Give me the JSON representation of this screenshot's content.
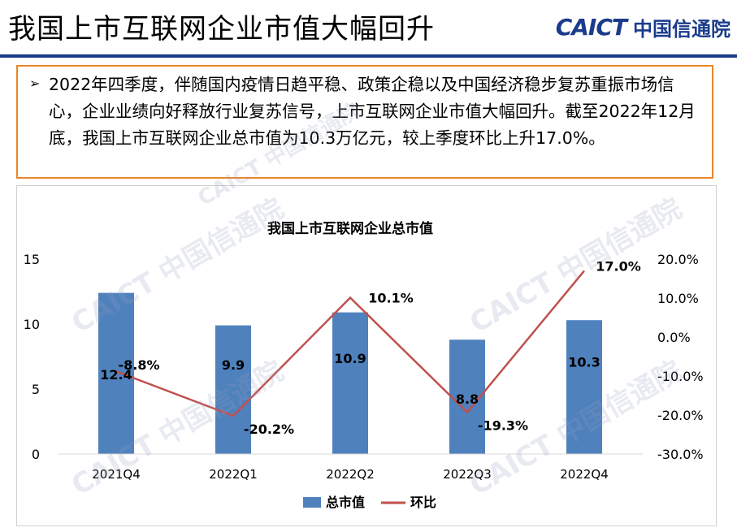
{
  "page": {
    "title": "我国上市互联网企业市值大幅回升",
    "logo_en": "CAICT",
    "logo_cn": "中国信通院",
    "summary_bullet": "➢",
    "summary": "2022年四季度，伴随国内疫情日趋平稳、政策企稳以及中国经济稳步复苏重振市场信心，企业业绩向好释放行业复苏信号，上市互联网企业市值大幅回升。截至2022年12月底，我国上市互联网企业总市值为10.3万亿元，较上季度环比上升17.0%。",
    "watermark": "CAICT 中国信通院"
  },
  "colors": {
    "bar": "#4f81bd",
    "line": "#c0504d",
    "accent": "#1b3c8c",
    "border": "#e8862a"
  },
  "chart_data": {
    "type": "bar",
    "title": "我国上市互联网企业总市值",
    "categories": [
      "2021Q4",
      "2022Q1",
      "2022Q2",
      "2022Q3",
      "2022Q4"
    ],
    "series": [
      {
        "name": "总市值",
        "type": "bar",
        "axis": "left",
        "values": [
          12.4,
          9.9,
          10.9,
          8.8,
          10.3
        ],
        "labels": [
          "12.4",
          "9.9",
          "10.9",
          "8.8",
          "10.3"
        ]
      },
      {
        "name": "环比",
        "type": "line",
        "axis": "right",
        "values": [
          -8.8,
          -20.2,
          10.1,
          -19.3,
          17.0
        ],
        "labels": [
          "-8.8%",
          "-20.2%",
          "10.1%",
          "-19.3%",
          "17.0%"
        ]
      }
    ],
    "y_left": {
      "min": 0,
      "max": 15,
      "ticks": [
        "0",
        "5",
        "10",
        "15"
      ],
      "tick_values": [
        0,
        5,
        10,
        15
      ]
    },
    "y_right": {
      "min": -30,
      "max": 20,
      "ticks": [
        "-30.0%",
        "-20.0%",
        "-10.0%",
        "0.0%",
        "10.0%",
        "20.0%"
      ],
      "tick_values": [
        -30,
        -20,
        -10,
        0,
        10,
        20
      ]
    },
    "legend_position": "bottom",
    "grid": false
  }
}
